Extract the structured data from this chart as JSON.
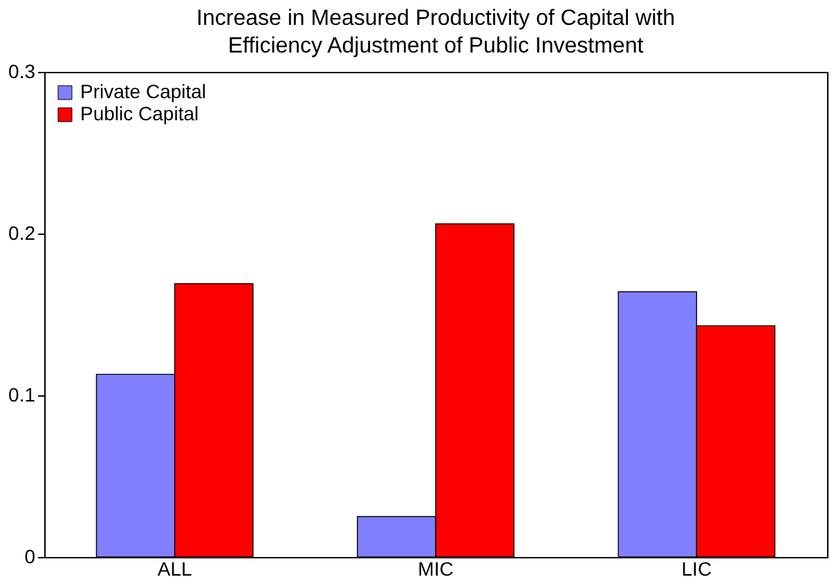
{
  "chart_data": {
    "type": "bar",
    "title": "Increase in Measured Productivity of Capital with Efficiency Adjustment of Public Investment",
    "categories": [
      "ALL",
      "MIC",
      "LIC"
    ],
    "series": [
      {
        "name": "Private Capital",
        "color": "#8080ff",
        "values": [
          0.113,
          0.025,
          0.164
        ]
      },
      {
        "name": "Public Capital",
        "color": "#ff0000",
        "values": [
          0.169,
          0.206,
          0.143
        ]
      }
    ],
    "ylim": [
      0,
      0.3
    ],
    "yticks": [
      0,
      0.1,
      0.2,
      0.3
    ],
    "grid": false,
    "legend": "top left"
  }
}
